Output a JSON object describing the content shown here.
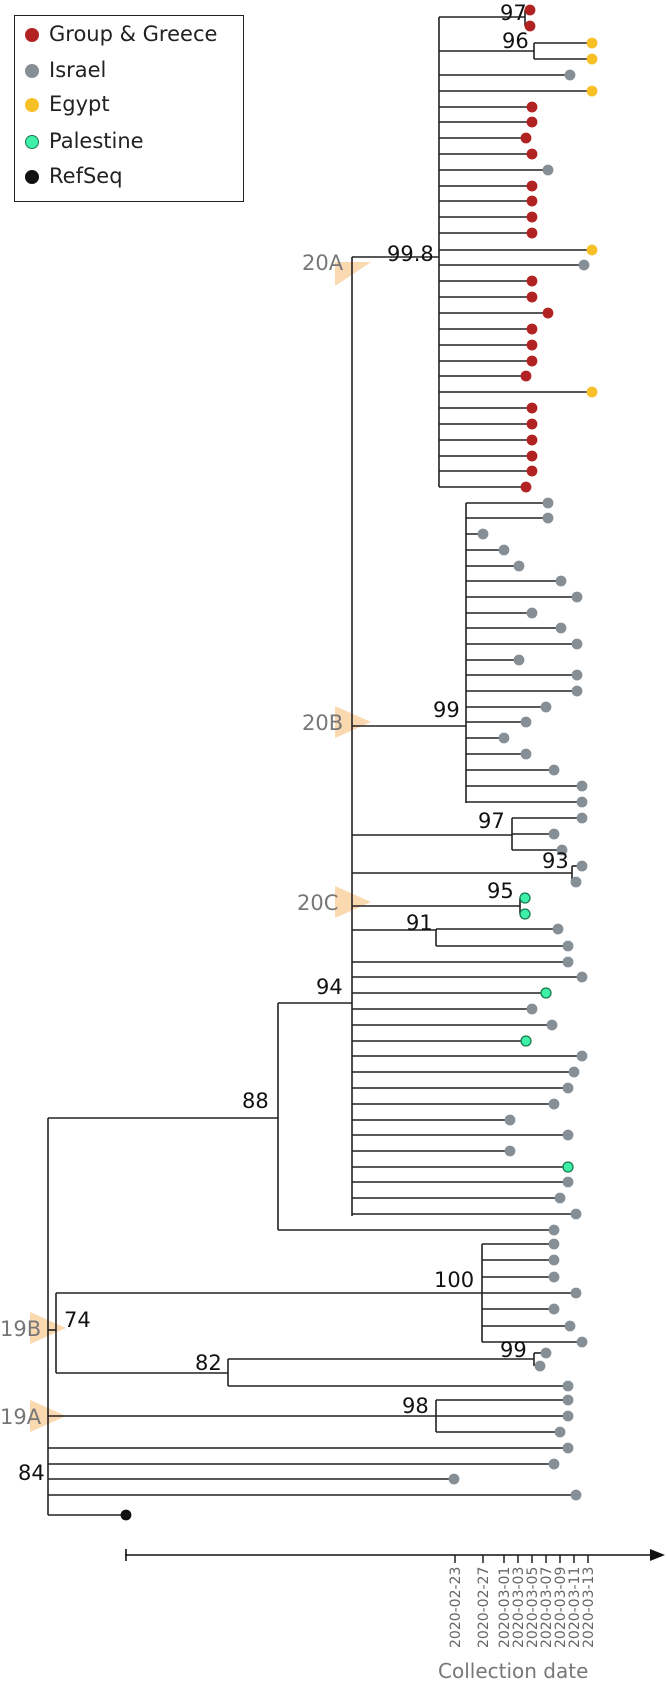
{
  "legend": [
    {
      "label": "Group & Greece",
      "color": "#b22222",
      "stroke": "#b22222"
    },
    {
      "label": "Israel",
      "color": "#868e96",
      "stroke": "#868e96"
    },
    {
      "label": "Egypt",
      "color": "#f6c026",
      "stroke": "#f6c026"
    },
    {
      "label": "Palestine",
      "color": "#3ff0a8",
      "stroke": "#1a7a50"
    },
    {
      "label": "RefSeq",
      "color": "#111111",
      "stroke": "#111111"
    }
  ],
  "clades": [
    "20A",
    "20B",
    "20C",
    "19B",
    "19A"
  ],
  "support_values": [
    "97",
    "96",
    "99.8",
    "99",
    "97",
    "93",
    "95",
    "91",
    "94",
    "88",
    "100",
    "74",
    "99",
    "82",
    "98",
    "84"
  ],
  "axis": {
    "title": "Collection date",
    "ticks": [
      "2020-02-23",
      "2020-02-27",
      "2020-03-01",
      "2020-03-03",
      "2020-03-05",
      "2020-03-07",
      "2020-03-09",
      "2020-03-11",
      "2020-03-13"
    ]
  }
}
